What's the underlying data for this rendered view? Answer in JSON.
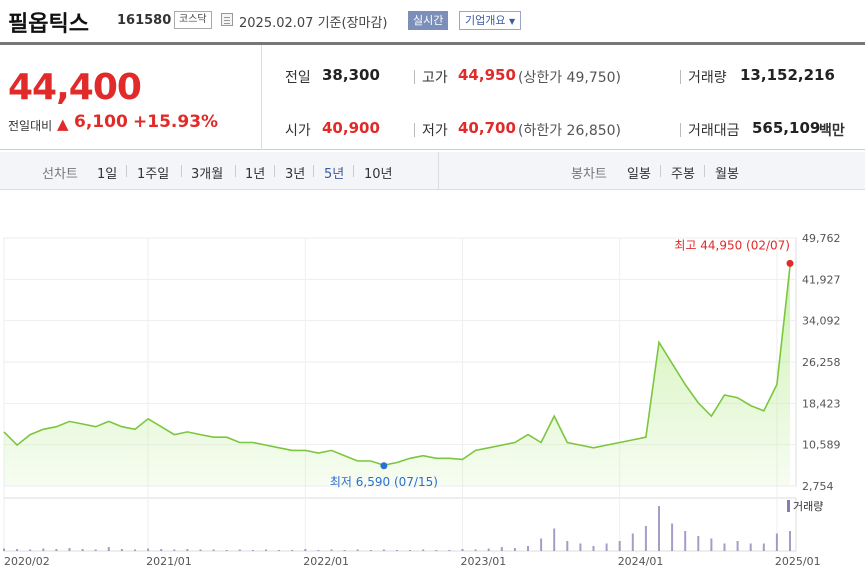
{
  "header": {
    "name": "필옵틱스",
    "code": "161580",
    "market": "코스닥",
    "date_text": "2025.02.07  기준(장마감)",
    "realtime_label": "실시간",
    "company_label": "기업개요"
  },
  "summary": {
    "price": "44,400",
    "change_label": "전일대비",
    "change_value": "6,100",
    "change_percent": "+15.93%",
    "prev_label": "전일",
    "prev_value": "38,300",
    "high_label": "고가",
    "high_value": "44,950",
    "upper_limit_text": "(상한가 49,750)",
    "volume_label": "거래량",
    "volume_value": "13,152,216",
    "open_label": "시가",
    "open_value": "40,900",
    "low_label": "저가",
    "low_value": "40,700",
    "lower_limit_text": "(하한가 26,850)",
    "amount_label": "거래대금",
    "amount_value": "565,109",
    "amount_unit": "백만"
  },
  "period_bar": {
    "line_label": "선차트",
    "periods": [
      "1일",
      "1주일",
      "3개월",
      "1년",
      "3년",
      "5년",
      "10년"
    ],
    "active_period": "5년",
    "candle_label": "봉차트",
    "candles": [
      "일봉",
      "주봉",
      "월봉"
    ]
  },
  "colors": {
    "up": "#e12b2b",
    "accent": "#3e5aa0",
    "line": "#7cc63f",
    "fill": "#c8f0a8",
    "volume": "#8a7ab5",
    "low_marker": "#2d6fd1"
  },
  "chart_data": {
    "type": "area",
    "ylim": [
      2754,
      49762
    ],
    "yticks": [
      49762,
      41927,
      34092,
      26258,
      18423,
      10589,
      2754
    ],
    "xticks": [
      "2020/02",
      "2021/01",
      "2022/01",
      "2023/01",
      "2024/01",
      "2025/01"
    ],
    "volume_label": "거래량",
    "high_annotation": "최고 44,950 (02/07)",
    "low_annotation": "최저 6,590 (07/15)",
    "dates": [
      "2020-02",
      "2020-03",
      "2020-04",
      "2020-05",
      "2020-06",
      "2020-07",
      "2020-08",
      "2020-09",
      "2020-10",
      "2020-11",
      "2020-12",
      "2021-01",
      "2021-02",
      "2021-03",
      "2021-04",
      "2021-05",
      "2021-06",
      "2021-07",
      "2021-08",
      "2021-09",
      "2021-10",
      "2021-11",
      "2021-12",
      "2022-01",
      "2022-02",
      "2022-03",
      "2022-04",
      "2022-05",
      "2022-06",
      "2022-07",
      "2022-08",
      "2022-09",
      "2022-10",
      "2022-11",
      "2022-12",
      "2023-01",
      "2023-02",
      "2023-03",
      "2023-04",
      "2023-05",
      "2023-06",
      "2023-07",
      "2023-08",
      "2023-09",
      "2023-10",
      "2023-11",
      "2023-12",
      "2024-01",
      "2024-02",
      "2024-03",
      "2024-04",
      "2024-05",
      "2024-06",
      "2024-07",
      "2024-08",
      "2024-09",
      "2024-10",
      "2024-11",
      "2024-12",
      "2025-01",
      "2025-02"
    ],
    "values": [
      13000,
      10500,
      12500,
      13500,
      14000,
      15000,
      14500,
      14000,
      15000,
      14000,
      13500,
      15500,
      14000,
      12500,
      13000,
      12500,
      12000,
      12000,
      11000,
      11000,
      10500,
      10000,
      9500,
      9500,
      9000,
      9500,
      8500,
      7500,
      7500,
      6700,
      7200,
      8000,
      8500,
      8000,
      8000,
      7800,
      9500,
      10000,
      10500,
      11000,
      12500,
      11000,
      16000,
      11000,
      10500,
      10000,
      10500,
      11000,
      11500,
      12000,
      30000,
      26000,
      22000,
      18500,
      16000,
      20000,
      19500,
      18000,
      17000,
      22000,
      44400
    ],
    "volumes": [
      0.5,
      0.4,
      0.3,
      0.5,
      0.4,
      0.6,
      0.4,
      0.3,
      0.8,
      0.4,
      0.3,
      0.5,
      0.4,
      0.3,
      0.4,
      0.3,
      0.3,
      0.2,
      0.3,
      0.2,
      0.3,
      0.2,
      0.2,
      0.4,
      0.2,
      0.3,
      0.2,
      0.3,
      0.2,
      0.3,
      0.2,
      0.2,
      0.3,
      0.2,
      0.2,
      0.4,
      0.3,
      0.5,
      0.8,
      0.6,
      1.0,
      2.5,
      4.5,
      2.0,
      1.5,
      1.0,
      1.5,
      2.0,
      3.5,
      5.0,
      9.0,
      5.5,
      4.0,
      3.0,
      2.5,
      1.5,
      2.0,
      1.5,
      1.5,
      3.5,
      4.0
    ]
  }
}
